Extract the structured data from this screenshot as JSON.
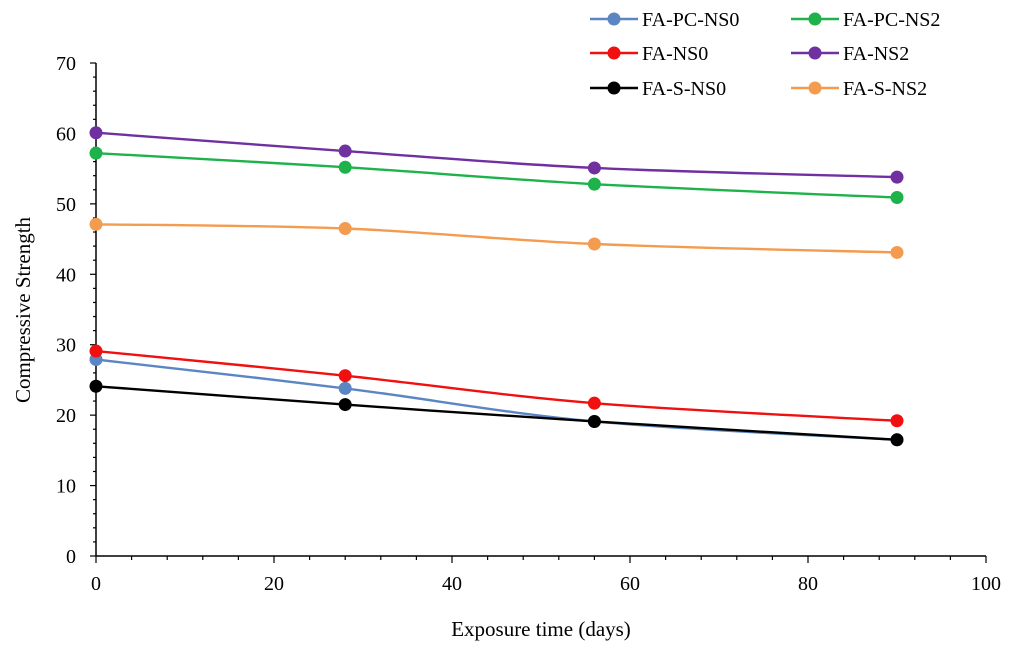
{
  "chart_data": {
    "type": "line",
    "title": "",
    "xlabel": "Exposure time (days)",
    "ylabel": "Compressive Strength",
    "xlim": [
      0,
      100
    ],
    "ylim": [
      0,
      70
    ],
    "x_ticks": [
      0,
      20,
      40,
      60,
      80,
      100
    ],
    "y_ticks": [
      0,
      10,
      20,
      30,
      40,
      50,
      60,
      70
    ],
    "x_tick_labels": [
      "0",
      "20",
      "40",
      "60",
      "80",
      "100"
    ],
    "y_tick_labels": [
      "0",
      "10",
      "20",
      "30",
      "40",
      "50",
      "60",
      "70"
    ],
    "grid": false,
    "legend_position": "top-right",
    "x": [
      0,
      28,
      56,
      90
    ],
    "series": [
      {
        "name": "FA-PC-NS0",
        "color": "#5b86c3",
        "values": [
          27.9,
          23.8,
          19.1,
          16.5
        ]
      },
      {
        "name": "FA-PC-NS2",
        "color": "#1eb24b",
        "values": [
          57.2,
          55.2,
          52.8,
          50.9
        ]
      },
      {
        "name": "FA-NS0",
        "color": "#f01010",
        "values": [
          29.1,
          25.6,
          21.7,
          19.2
        ]
      },
      {
        "name": "FA-NS2",
        "color": "#7030a0",
        "values": [
          60.1,
          57.5,
          55.1,
          53.8
        ]
      },
      {
        "name": "FA-S-NS0",
        "color": "#000000",
        "values": [
          24.1,
          21.5,
          19.1,
          16.5
        ]
      },
      {
        "name": "FA-S-NS2",
        "color": "#f39b4e",
        "values": [
          47.1,
          46.5,
          44.3,
          43.1
        ]
      }
    ]
  }
}
